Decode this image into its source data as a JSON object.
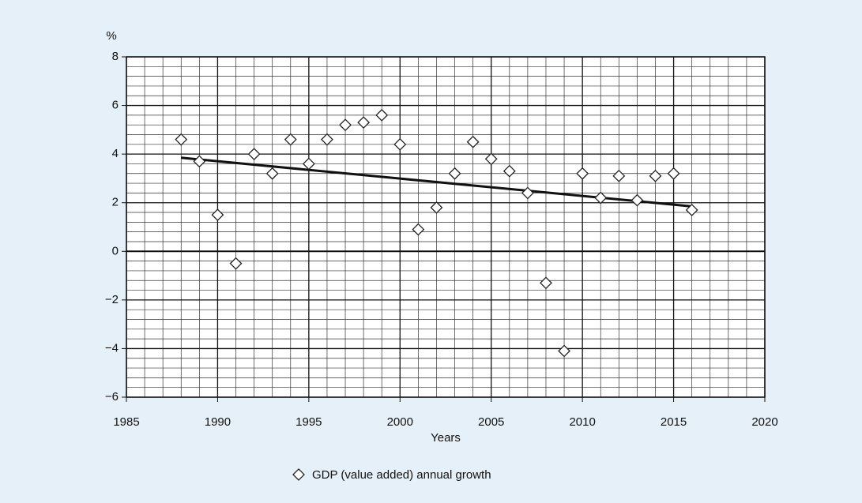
{
  "chart_data": {
    "type": "scatter",
    "y_label": "%",
    "x_label": "Years",
    "x": [
      1988,
      1989,
      1990,
      1991,
      1992,
      1993,
      1994,
      1995,
      1996,
      1997,
      1998,
      1999,
      2000,
      2001,
      2002,
      2003,
      2004,
      2005,
      2006,
      2007,
      2008,
      2009,
      2010,
      2011,
      2012,
      2013,
      2014,
      2015,
      2016
    ],
    "series": [
      {
        "name": "GDP (value added) annual growth",
        "color": "#222222",
        "values": [
          4.6,
          3.7,
          1.5,
          -0.5,
          4.0,
          3.2,
          4.6,
          3.6,
          4.6,
          5.2,
          5.3,
          5.6,
          4.4,
          0.9,
          1.8,
          3.2,
          4.5,
          3.8,
          3.3,
          2.4,
          -1.3,
          -4.1,
          3.2,
          2.2,
          3.1,
          2.1,
          3.1,
          3.2,
          1.7
        ]
      }
    ],
    "trend": {
      "x": [
        1988,
        2016
      ],
      "values": [
        3.85,
        1.85
      ],
      "color": "#111111"
    },
    "xlim": [
      1985,
      2020
    ],
    "xticks": [
      1985,
      1990,
      1995,
      2000,
      2005,
      2010,
      2015,
      2020
    ],
    "ylim": [
      -6,
      8
    ],
    "yticks": [
      {
        "value": -6,
        "label": "−6"
      },
      {
        "value": -4,
        "label": "−4"
      },
      {
        "value": -2,
        "label": "−2"
      },
      0,
      2,
      4,
      6,
      8
    ],
    "grid": true
  }
}
